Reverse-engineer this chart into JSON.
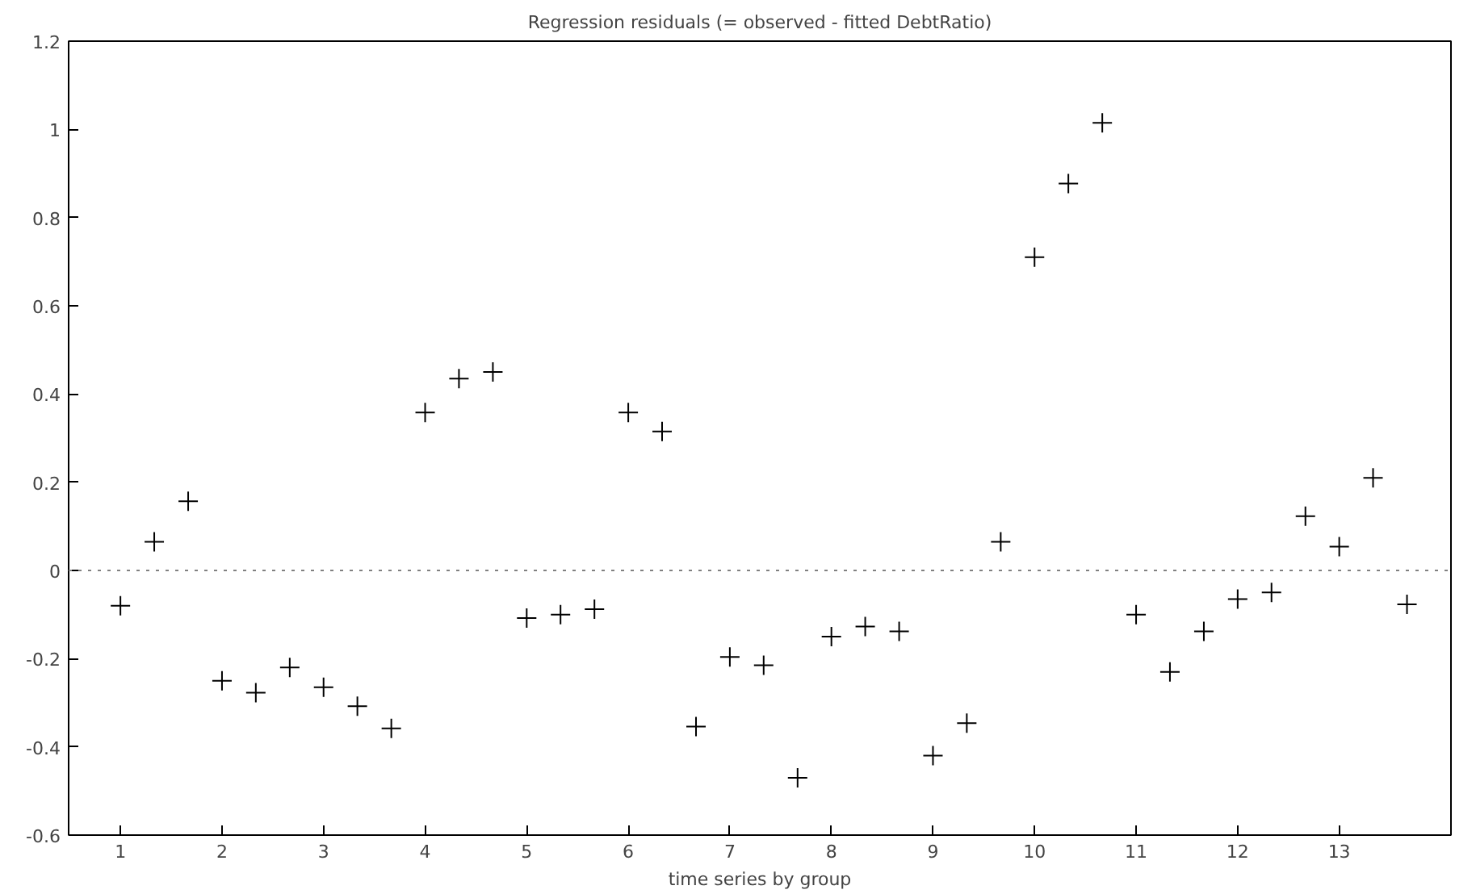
{
  "chart_data": {
    "type": "scatter",
    "title": "Regression residuals (= observed - fitted DebtRatio)",
    "xlabel": "time series by group",
    "x": [
      1,
      1.333,
      1.667,
      2,
      2.333,
      2.667,
      3,
      3.333,
      3.667,
      4,
      4.333,
      4.667,
      5,
      5.333,
      5.667,
      6,
      6.333,
      6.667,
      7,
      7.333,
      7.667,
      8,
      8.333,
      8.667,
      9,
      9.333,
      9.667,
      10,
      10.333,
      10.667,
      11,
      11.333,
      11.667,
      12,
      12.333,
      12.667,
      13,
      13.333,
      13.667
    ],
    "series": [
      {
        "color": "#000000",
        "values": [
          -0.08,
          0.065,
          0.157,
          -0.25,
          -0.277,
          -0.22,
          -0.265,
          -0.308,
          -0.358,
          0.358,
          0.435,
          0.45,
          -0.108,
          -0.1,
          -0.088,
          0.358,
          0.315,
          -0.354,
          -0.196,
          -0.215,
          -0.47,
          -0.15,
          -0.127,
          -0.138,
          -0.42,
          -0.346,
          0.065,
          0.71,
          0.877,
          1.015,
          -0.1,
          -0.23,
          -0.138,
          -0.065,
          -0.05,
          0.123,
          0.054,
          0.21,
          -0.077
        ]
      }
    ],
    "xlim": [
      0.49,
      14.1
    ],
    "ylim": [
      -0.6,
      1.2
    ],
    "xticks": [
      1,
      2,
      3,
      4,
      5,
      6,
      7,
      8,
      9,
      10,
      11,
      12,
      13
    ],
    "yticks": [
      -0.6,
      -0.4,
      -0.2,
      0,
      0.2,
      0.4,
      0.6,
      0.8,
      1,
      1.2
    ],
    "ref_lines": [
      {
        "axis": "y",
        "value": 0,
        "color": "#808080",
        "line_style": "dotted"
      }
    ],
    "marker": "cross",
    "grid": false
  }
}
